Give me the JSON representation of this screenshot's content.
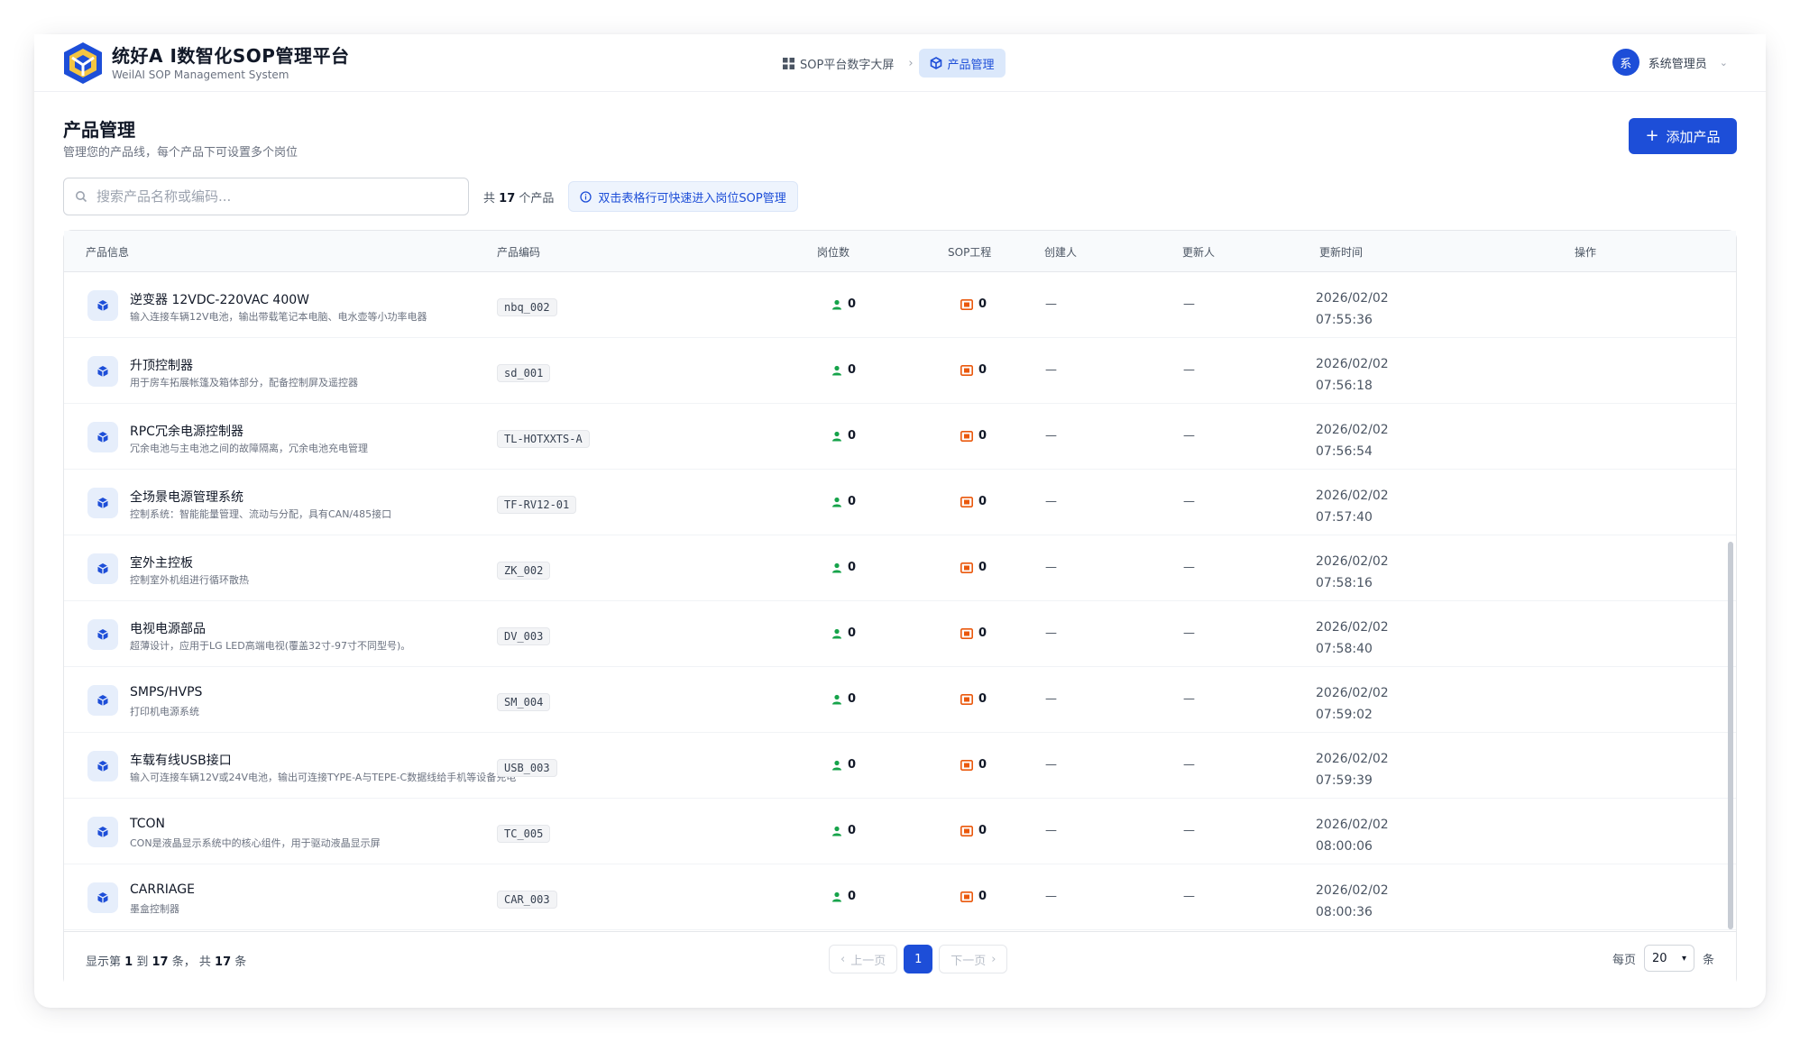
{
  "header": {
    "brand_title": "统好A I数智化SOP管理平台",
    "brand_subtitle": "WeilAI SOP Management System",
    "breadcrumb": [
      {
        "label": "SOP平台数字大屏",
        "icon": "dashboard-grid-icon"
      },
      {
        "label": "产品管理",
        "icon": "cube-icon"
      }
    ],
    "user": {
      "avatar_text": "系",
      "name": "系统管理员"
    }
  },
  "page": {
    "title": "产品管理",
    "description": "管理您的产品线，每个产品下可设置多个岗位",
    "add_button": "添加产品"
  },
  "toolbar": {
    "search_placeholder": "搜索产品名称或编码...",
    "count_prefix": "共",
    "count_value": "17",
    "count_suffix": "个产品",
    "hint": "双击表格行可快速进入岗位SOP管理"
  },
  "table": {
    "columns": {
      "info": "产品信息",
      "code": "产品编码",
      "positions": "岗位数",
      "sop": "SOP工程",
      "creator": "创建人",
      "updater": "更新人",
      "updated_at": "更新时间",
      "actions": "操作"
    },
    "rows": [
      {
        "name": "逆变器 12VDC-220VAC 400W",
        "desc": "输入连接车辆12V电池，输出带载笔记本电脑、电水壶等小功率电器",
        "code": "nbq_002",
        "positions": "0",
        "sop": "0",
        "creator": "—",
        "updater": "—",
        "date": "2026/02/02",
        "time": "07:55:36"
      },
      {
        "name": "升顶控制器",
        "desc": "用于房车拓展帐篷及箱体部分，配备控制屏及遥控器",
        "code": "sd_001",
        "positions": "0",
        "sop": "0",
        "creator": "—",
        "updater": "—",
        "date": "2026/02/02",
        "time": "07:56:18"
      },
      {
        "name": "RPC冗余电源控制器",
        "desc": "冗余电池与主电池之间的故障隔离，冗余电池充电管理",
        "code": "TL-HOTXXTS-A",
        "positions": "0",
        "sop": "0",
        "creator": "—",
        "updater": "—",
        "date": "2026/02/02",
        "time": "07:56:54"
      },
      {
        "name": "全场景电源管理系统",
        "desc": "控制系统：智能能量管理、流动与分配，具有CAN/485接口",
        "code": "TF-RV12-01",
        "positions": "0",
        "sop": "0",
        "creator": "—",
        "updater": "—",
        "date": "2026/02/02",
        "time": "07:57:40"
      },
      {
        "name": "室外主控板",
        "desc": "控制室外机组进行循环散热",
        "code": "ZK_002",
        "positions": "0",
        "sop": "0",
        "creator": "—",
        "updater": "—",
        "date": "2026/02/02",
        "time": "07:58:16"
      },
      {
        "name": "电视电源部品",
        "desc": "超薄设计，应用于LG LED高端电视(覆盖32寸-97寸不同型号)。",
        "code": "DV_003",
        "positions": "0",
        "sop": "0",
        "creator": "—",
        "updater": "—",
        "date": "2026/02/02",
        "time": "07:58:40"
      },
      {
        "name": "SMPS/HVPS",
        "desc": "打印机电源系统",
        "code": "SM_004",
        "positions": "0",
        "sop": "0",
        "creator": "—",
        "updater": "—",
        "date": "2026/02/02",
        "time": "07:59:02"
      },
      {
        "name": "车载有线USB接口",
        "desc": "输入可连接车辆12V或24V电池，输出可连接TYPE-A与TEPE-C数据线给手机等设备充电",
        "code": "USB_003",
        "positions": "0",
        "sop": "0",
        "creator": "—",
        "updater": "—",
        "date": "2026/02/02",
        "time": "07:59:39"
      },
      {
        "name": "TCON",
        "desc": "CON是液晶显示系统中的核心组件，用于驱动液晶显示屏",
        "code": "TC_005",
        "positions": "0",
        "sop": "0",
        "creator": "—",
        "updater": "—",
        "date": "2026/02/02",
        "time": "08:00:06"
      },
      {
        "name": "CARRIAGE",
        "desc": "墨盒控制器",
        "code": "CAR_003",
        "positions": "0",
        "sop": "0",
        "creator": "—",
        "updater": "—",
        "date": "2026/02/02",
        "time": "08:00:36"
      }
    ]
  },
  "footer": {
    "range_prefix": "显示第",
    "range_from": "1",
    "range_mid": "到",
    "range_to": "17",
    "range_suffix": "条，",
    "total_prefix": "共",
    "total": "17",
    "total_suffix": "条",
    "prev": "上一页",
    "page": "1",
    "next": "下一页",
    "per_page_label": "每页",
    "per_page_value": "20",
    "per_page_unit": "条"
  },
  "colors": {
    "primary": "#1d4ed8",
    "positions_icon": "#16a34a",
    "sop_icon": "#ea580c"
  }
}
